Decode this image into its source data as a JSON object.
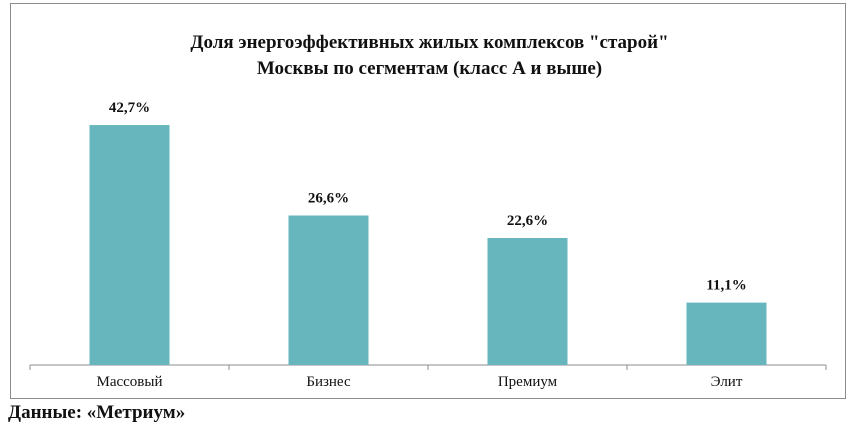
{
  "chart_data": {
    "type": "bar",
    "title_line1": "Доля энергоэффективных жилых комплексов \"старой\"",
    "title_line2": "Москвы по сегментам (класс А и выше)",
    "categories": [
      "Массовый",
      "Бизнес",
      "Премиум",
      "Элит"
    ],
    "values": [
      42.7,
      26.6,
      22.6,
      11.1
    ],
    "data_labels": [
      "42,7%",
      "26,6%",
      "22,6%",
      "11,1%"
    ],
    "unit": "%",
    "ylim": [
      0,
      50
    ],
    "grid": false,
    "bar_color": "#67B6BD"
  },
  "source": "Данные: «Метриум»"
}
